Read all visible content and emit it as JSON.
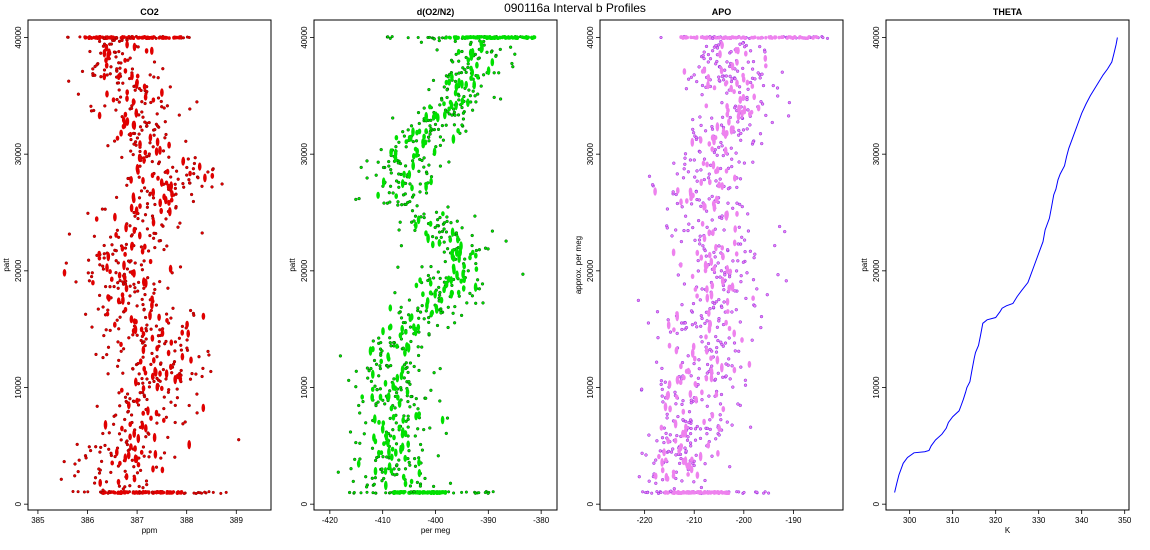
{
  "figure": {
    "title": "090116a   Interval b Profiles"
  },
  "chart_data": [
    {
      "type": "scatter",
      "title": "CO2",
      "xlabel": "ppm",
      "ylabel": "patt",
      "xlim": [
        384.8,
        389.7
      ],
      "ylim": [
        -500,
        41500
      ],
      "xticks": [
        385,
        386,
        387,
        388,
        389
      ],
      "yticks": [
        0,
        10000,
        20000,
        30000,
        40000
      ],
      "colors": {
        "points": "#e00000",
        "outline": "#8b0000"
      },
      "bands": [
        {
          "y": 0,
          "mean": 387.0,
          "sd": 0.35
        },
        {
          "y": 3000,
          "mean": 386.7,
          "sd": 0.5
        },
        {
          "y": 6000,
          "mean": 387.0,
          "sd": 0.5
        },
        {
          "y": 9000,
          "mean": 387.2,
          "sd": 0.5
        },
        {
          "y": 12000,
          "mean": 387.6,
          "sd": 0.5
        },
        {
          "y": 15000,
          "mean": 387.3,
          "sd": 0.5
        },
        {
          "y": 18000,
          "mean": 386.9,
          "sd": 0.5
        },
        {
          "y": 21000,
          "mean": 386.6,
          "sd": 0.5
        },
        {
          "y": 24000,
          "mean": 387.0,
          "sd": 0.45
        },
        {
          "y": 27000,
          "mean": 387.5,
          "sd": 0.45
        },
        {
          "y": 29000,
          "mean": 387.8,
          "sd": 0.45
        },
        {
          "y": 31000,
          "mean": 387.1,
          "sd": 0.4
        },
        {
          "y": 34000,
          "mean": 387.0,
          "sd": 0.4
        },
        {
          "y": 37000,
          "mean": 386.7,
          "sd": 0.35
        },
        {
          "y": 40000,
          "mean": 386.7,
          "sd": 0.35
        }
      ],
      "edges": [
        {
          "y": 40000,
          "xmin": 385.5,
          "xmax": 388.2,
          "dense": [
            385.9,
            387.9
          ]
        },
        {
          "y": 1000,
          "xmin": 385.7,
          "xmax": 388.8,
          "dense": [
            386.3,
            387.9
          ]
        }
      ]
    },
    {
      "type": "scatter",
      "title": "d(O2/N2)",
      "xlabel": "per meg",
      "ylabel": "patt",
      "xlim": [
        -423,
        -377
      ],
      "ylim": [
        -500,
        41500
      ],
      "xticks": [
        -420,
        -410,
        -400,
        -390,
        -380
      ],
      "yticks": [
        0,
        10000,
        20000,
        30000,
        40000
      ],
      "colors": {
        "points": "#00e000",
        "outline": "#005c00"
      },
      "bands": [
        {
          "y": 0,
          "mean": -406.0,
          "sd": 3.5
        },
        {
          "y": 3000,
          "mean": -408.0,
          "sd": 3.0
        },
        {
          "y": 6000,
          "mean": -407.0,
          "sd": 3.5
        },
        {
          "y": 9000,
          "mean": -407.0,
          "sd": 3.5
        },
        {
          "y": 12000,
          "mean": -409.0,
          "sd": 3.5
        },
        {
          "y": 15000,
          "mean": -406.0,
          "sd": 3.5
        },
        {
          "y": 18000,
          "mean": -398.0,
          "sd": 3.5
        },
        {
          "y": 21000,
          "mean": -395.0,
          "sd": 3.5
        },
        {
          "y": 23500,
          "mean": -398.0,
          "sd": 3.0
        },
        {
          "y": 26000,
          "mean": -407.0,
          "sd": 3.0
        },
        {
          "y": 29000,
          "mean": -407.0,
          "sd": 3.5
        },
        {
          "y": 32000,
          "mean": -402.0,
          "sd": 3.0
        },
        {
          "y": 35000,
          "mean": -396.0,
          "sd": 3.0
        },
        {
          "y": 38000,
          "mean": -393.0,
          "sd": 3.0
        },
        {
          "y": 40000,
          "mean": -393.0,
          "sd": 3.5
        }
      ],
      "edges": [
        {
          "y": 40000,
          "xmin": -410.0,
          "xmax": -380.0,
          "dense": [
            -398.0,
            -381.0
          ]
        },
        {
          "y": 1000,
          "xmin": -416.0,
          "xmax": -389.0,
          "dense": [
            -408.0,
            -398.0
          ]
        }
      ]
    },
    {
      "type": "scatter",
      "title": "APO",
      "xlabel": "",
      "ylabel": "approx. per meg",
      "xlim": [
        -229,
        -180
      ],
      "ylim": [
        -500,
        41500
      ],
      "xticks": [
        -220,
        -210,
        -200,
        -190
      ],
      "yticks": [
        0,
        10000,
        20000,
        30000,
        40000
      ],
      "colors": {
        "points": "#ee82ee",
        "outline": "#8a2be2"
      },
      "bands": [
        {
          "y": 0,
          "mean": -215.0,
          "sd": 3.5
        },
        {
          "y": 3000,
          "mean": -214.0,
          "sd": 4.0
        },
        {
          "y": 6000,
          "mean": -210.0,
          "sd": 4.0
        },
        {
          "y": 9000,
          "mean": -210.0,
          "sd": 4.5
        },
        {
          "y": 12000,
          "mean": -208.0,
          "sd": 4.5
        },
        {
          "y": 15000,
          "mean": -209.0,
          "sd": 4.5
        },
        {
          "y": 18000,
          "mean": -205.0,
          "sd": 4.5
        },
        {
          "y": 21000,
          "mean": -205.0,
          "sd": 4.5
        },
        {
          "y": 24000,
          "mean": -207.0,
          "sd": 4.0
        },
        {
          "y": 27000,
          "mean": -209.0,
          "sd": 4.0
        },
        {
          "y": 30000,
          "mean": -206.0,
          "sd": 4.0
        },
        {
          "y": 33000,
          "mean": -202.0,
          "sd": 4.0
        },
        {
          "y": 36000,
          "mean": -203.0,
          "sd": 4.0
        },
        {
          "y": 39000,
          "mean": -204.0,
          "sd": 3.5
        }
      ],
      "edges": [
        {
          "y": 40000,
          "xmin": -218.0,
          "xmax": -183.0,
          "dense": [
            -213.0,
            -185.0
          ]
        },
        {
          "y": 1000,
          "xmin": -222.0,
          "xmax": -195.0,
          "dense": [
            -216.0,
            -203.0
          ]
        }
      ]
    },
    {
      "type": "line",
      "title": "THETA",
      "xlabel": "K",
      "ylabel": "patt",
      "xlim": [
        294.5,
        351
      ],
      "ylim": [
        -500,
        41500
      ],
      "xticks": [
        300,
        310,
        320,
        330,
        340,
        350
      ],
      "yticks": [
        0,
        10000,
        20000,
        30000,
        40000
      ],
      "colors": {
        "line": "#0000ff"
      },
      "x": [
        296.5,
        297.0,
        297.5,
        298.5,
        299.5,
        301.0,
        303.5,
        304.5,
        305.0,
        306.0,
        307.5,
        308.5,
        309.0,
        310.0,
        311.5,
        312.0,
        312.5,
        313.0,
        313.3,
        314.0,
        314.5,
        315.0,
        315.3,
        316.0,
        316.5,
        317.0,
        318.0,
        320.0,
        321.0,
        321.5,
        322.5,
        324.0,
        325.0,
        326.0,
        327.5,
        328.0,
        329.0,
        330.0,
        331.0,
        331.5,
        332.5,
        333.0,
        333.5,
        334.0,
        334.5,
        335.0,
        336.0,
        336.5,
        337.0,
        338.0,
        339.0,
        340.0,
        341.0,
        342.0,
        343.0,
        344.0,
        345.0,
        346.0,
        347.0,
        347.5,
        348.0,
        348.3
      ],
      "y": [
        1000,
        1800,
        2500,
        3500,
        4000,
        4400,
        4500,
        4600,
        5000,
        5500,
        6000,
        6500,
        7000,
        7500,
        8000,
        8500,
        9000,
        9600,
        10000,
        10500,
        11500,
        12500,
        13000,
        13600,
        14500,
        15500,
        15800,
        16000,
        16500,
        16800,
        17000,
        17200,
        17800,
        18300,
        19000,
        19500,
        20500,
        21500,
        22500,
        23500,
        24500,
        25500,
        26500,
        27000,
        27800,
        28300,
        29000,
        29800,
        30500,
        31500,
        32500,
        33500,
        34300,
        35000,
        35600,
        36200,
        36800,
        37300,
        37900,
        38600,
        39400,
        40000
      ]
    }
  ]
}
